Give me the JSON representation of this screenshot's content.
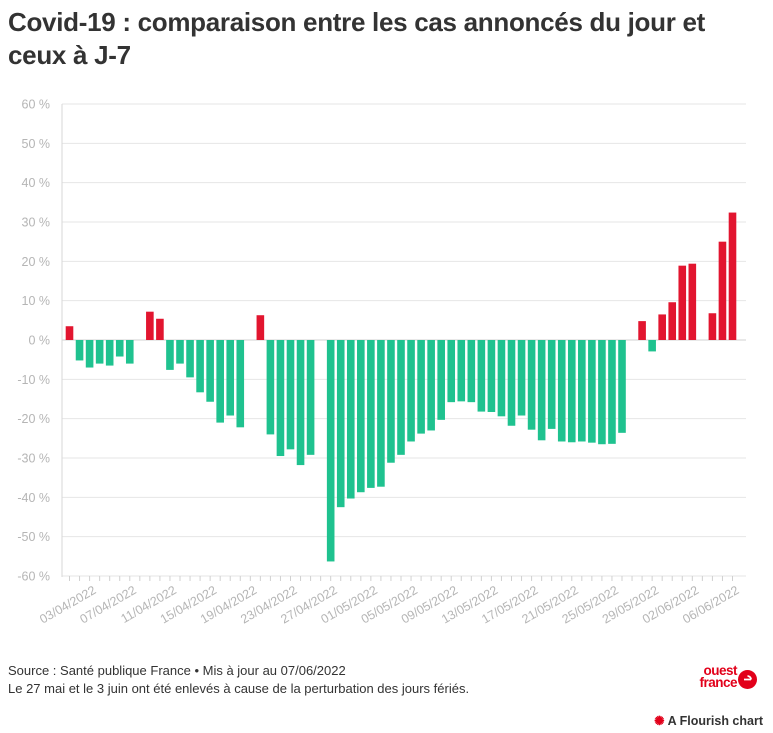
{
  "title": "Covid-19 : comparaison entre les cas annoncés du jour et ceux à J-7",
  "footer": {
    "source": "Source : Santé publique France • Mis à jour au 07/06/2022",
    "note": "Le 27 mai et le 3 juin ont été enlevés à cause de la perturbation des jours fériés."
  },
  "logo": {
    "line1": "ouest",
    "line2": "france"
  },
  "credit": {
    "icon": "flourish-star-icon",
    "label": "A Flourish chart"
  },
  "colors": {
    "positive": "#e2152f",
    "negative": "#1fc28f",
    "grid": "#e6e6e6",
    "axis_text": "#b5b5b5"
  },
  "chart_data": {
    "type": "bar",
    "title": "Covid-19 : comparaison entre les cas annoncés du jour et ceux à J-7",
    "xlabel": "",
    "ylabel": "",
    "ylim": [
      -60,
      60
    ],
    "y_ticks": [
      60,
      50,
      40,
      30,
      20,
      10,
      0,
      -10,
      -20,
      -30,
      -40,
      -50,
      -60
    ],
    "y_tick_labels": [
      "60 %",
      "50 %",
      "40 %",
      "30 %",
      "20 %",
      "10 %",
      "0 %",
      "-10 %",
      "-20 %",
      "-30 %",
      "-40 %",
      "-50 %",
      "-60 %"
    ],
    "x_tick_labels": [
      "03/04/2022",
      "07/04/2022",
      "11/04/2022",
      "15/04/2022",
      "19/04/2022",
      "23/04/2022",
      "27/04/2022",
      "01/05/2022",
      "05/05/2022",
      "09/05/2022",
      "13/05/2022",
      "17/05/2022",
      "21/05/2022",
      "25/05/2022",
      "29/05/2022",
      "02/06/2022",
      "06/06/2022"
    ],
    "grid": true,
    "categories": [
      "01/04/2022",
      "02/04/2022",
      "03/04/2022",
      "04/04/2022",
      "05/04/2022",
      "06/04/2022",
      "07/04/2022",
      "08/04/2022",
      "09/04/2022",
      "10/04/2022",
      "11/04/2022",
      "12/04/2022",
      "13/04/2022",
      "14/04/2022",
      "15/04/2022",
      "16/04/2022",
      "17/04/2022",
      "18/04/2022",
      "19/04/2022",
      "20/04/2022",
      "21/04/2022",
      "22/04/2022",
      "23/04/2022",
      "24/04/2022",
      "25/04/2022",
      "26/04/2022",
      "27/04/2022",
      "28/04/2022",
      "29/04/2022",
      "30/04/2022",
      "01/05/2022",
      "02/05/2022",
      "03/05/2022",
      "04/05/2022",
      "05/05/2022",
      "06/05/2022",
      "07/05/2022",
      "08/05/2022",
      "09/05/2022",
      "10/05/2022",
      "11/05/2022",
      "12/05/2022",
      "13/05/2022",
      "14/05/2022",
      "15/05/2022",
      "16/05/2022",
      "17/05/2022",
      "18/05/2022",
      "19/05/2022",
      "20/05/2022",
      "21/05/2022",
      "22/05/2022",
      "23/05/2022",
      "24/05/2022",
      "25/05/2022",
      "26/05/2022",
      "27/05/2022",
      "28/05/2022",
      "29/05/2022",
      "30/05/2022",
      "31/05/2022",
      "01/06/2022",
      "02/06/2022",
      "03/06/2022",
      "04/06/2022",
      "05/06/2022",
      "06/06/2022"
    ],
    "values": [
      3.5,
      -5.2,
      -7.0,
      -6.0,
      -6.5,
      -4.2,
      -6.0,
      null,
      7.2,
      5.4,
      -7.6,
      -6.0,
      -9.5,
      -13.3,
      -15.7,
      -21.0,
      -19.2,
      -22.2,
      null,
      6.3,
      -24.0,
      -29.5,
      -27.8,
      -31.8,
      -29.2,
      null,
      -56.3,
      -42.5,
      -40.3,
      -38.7,
      -37.6,
      -37.3,
      -31.2,
      -29.2,
      -25.8,
      -23.8,
      -23.0,
      -20.3,
      -15.8,
      -15.6,
      -15.8,
      -18.2,
      -18.3,
      -19.4,
      -21.8,
      -19.2,
      -22.8,
      -25.5,
      -22.6,
      -25.8,
      -26.0,
      -25.8,
      -26.1,
      -26.5,
      -26.4,
      -23.6,
      null,
      4.8,
      -2.9,
      6.5,
      9.6,
      18.9,
      19.4,
      null,
      6.8,
      25.0,
      32.4
    ]
  }
}
